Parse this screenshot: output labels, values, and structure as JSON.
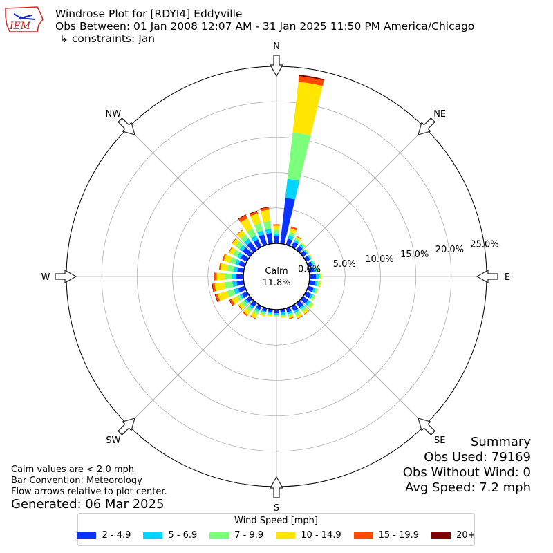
{
  "header": {
    "title": "Windrose Plot for [RDYI4] Eddyville",
    "subtitle": "Obs Between: 01 Jan 2008 12:07 AM - 31 Jan 2025 11:50 PM America/Chicago",
    "constraints": "↳ constraints: Jan",
    "logo_text": "IEM"
  },
  "summary": {
    "heading": "Summary",
    "obs_used": "Obs Used: 79169",
    "obs_without_wind": "Obs Without Wind: 0",
    "avg_speed": "Avg Speed: 7.2 mph"
  },
  "footer": {
    "calm_note": "Calm values are < 2.0 mph",
    "bar_convention": "Bar Convention: Meteorology",
    "flow_note": "Flow arrows relative to plot center.",
    "generated": "Generated: 06 Mar 2025"
  },
  "chart_data": {
    "type": "windrose",
    "calm_label": "Calm",
    "calm_value": "11.8%",
    "directions": [
      "N",
      "NE",
      "E",
      "SE",
      "S",
      "SW",
      "W",
      "NW"
    ],
    "radial_ticks": [
      "0.0%",
      "5.0%",
      "10.0%",
      "15.0%",
      "20.0%",
      "25.0%"
    ],
    "radial_max": 25,
    "grid": true,
    "legend_title": "Wind Speed [mph]",
    "legend_position": "bottom",
    "bins": [
      {
        "label": "2 - 4.9",
        "color": "#0b33ff"
      },
      {
        "label": "5 - 6.9",
        "color": "#00d4ff"
      },
      {
        "label": "7 - 9.9",
        "color": "#7cff7a"
      },
      {
        "label": "10 - 14.9",
        "color": "#ffe600"
      },
      {
        "label": "15 - 19.9",
        "color": "#ff4a00"
      },
      {
        "label": "20+",
        "color": "#800000"
      }
    ],
    "sector_values": [
      [
        1.0,
        0.4,
        0.5,
        0.6,
        0.2,
        0.0
      ],
      [
        6.5,
        2.7,
        6.6,
        7.2,
        0.8,
        0.2
      ],
      [
        0.9,
        0.5,
        0.5,
        0.5,
        0.3,
        0.0
      ],
      [
        0.8,
        0.3,
        0.3,
        0.2,
        0.1,
        0.0
      ],
      [
        0.7,
        0.3,
        0.2,
        0.1,
        0.0,
        0.0
      ],
      [
        0.6,
        0.2,
        0.1,
        0.1,
        0.0,
        0.0
      ],
      [
        0.6,
        0.2,
        0.1,
        0.1,
        0.0,
        0.0
      ],
      [
        0.6,
        0.2,
        0.2,
        0.0,
        0.0,
        0.0
      ],
      [
        0.7,
        0.3,
        0.2,
        0.1,
        0.0,
        0.0
      ],
      [
        0.9,
        0.4,
        0.3,
        0.1,
        0.0,
        0.0
      ],
      [
        0.8,
        0.4,
        0.3,
        0.2,
        0.0,
        0.0
      ],
      [
        0.8,
        0.3,
        0.3,
        0.1,
        0.0,
        0.0
      ],
      [
        0.8,
        0.3,
        0.3,
        0.1,
        0.0,
        0.0
      ],
      [
        0.9,
        0.4,
        0.4,
        0.2,
        0.0,
        0.0
      ],
      [
        0.8,
        0.3,
        0.4,
        0.4,
        0.1,
        0.0
      ],
      [
        0.8,
        0.3,
        0.4,
        0.4,
        0.1,
        0.0
      ],
      [
        0.6,
        0.3,
        0.3,
        0.3,
        0.1,
        0.0
      ],
      [
        0.5,
        0.3,
        0.2,
        0.2,
        0.0,
        0.0
      ],
      [
        0.5,
        0.2,
        0.2,
        0.1,
        0.0,
        0.0
      ],
      [
        0.4,
        0.2,
        0.2,
        0.2,
        0.0,
        0.0
      ],
      [
        0.5,
        0.2,
        0.3,
        0.2,
        0.0,
        0.0
      ],
      [
        0.6,
        0.3,
        0.4,
        0.6,
        0.1,
        0.0
      ],
      [
        0.7,
        0.3,
        0.5,
        0.6,
        0.2,
        0.0
      ],
      [
        0.7,
        0.3,
        0.5,
        0.5,
        0.1,
        0.0
      ],
      [
        0.8,
        0.3,
        0.5,
        0.8,
        0.3,
        0.1
      ],
      [
        1.0,
        0.6,
        1.0,
        1.4,
        0.3,
        0.1
      ],
      [
        1.0,
        0.6,
        1.1,
        1.4,
        0.3,
        0.1
      ],
      [
        1.0,
        0.6,
        1.0,
        1.2,
        0.3,
        0.1
      ],
      [
        0.9,
        0.5,
        0.9,
        1.0,
        0.2,
        0.0
      ],
      [
        0.9,
        0.5,
        0.8,
        0.9,
        0.2,
        0.0
      ],
      [
        1.0,
        0.5,
        0.7,
        0.6,
        0.1,
        0.0
      ],
      [
        1.3,
        0.5,
        0.7,
        0.6,
        0.1,
        0.0
      ],
      [
        1.4,
        0.6,
        0.7,
        0.7,
        0.1,
        0.0
      ],
      [
        1.2,
        0.6,
        1.1,
        1.6,
        0.5,
        0.1
      ],
      [
        1.5,
        0.6,
        1.1,
        1.4,
        0.3,
        0.1
      ],
      [
        1.5,
        0.6,
        1.1,
        1.6,
        0.3,
        0.1
      ]
    ]
  }
}
